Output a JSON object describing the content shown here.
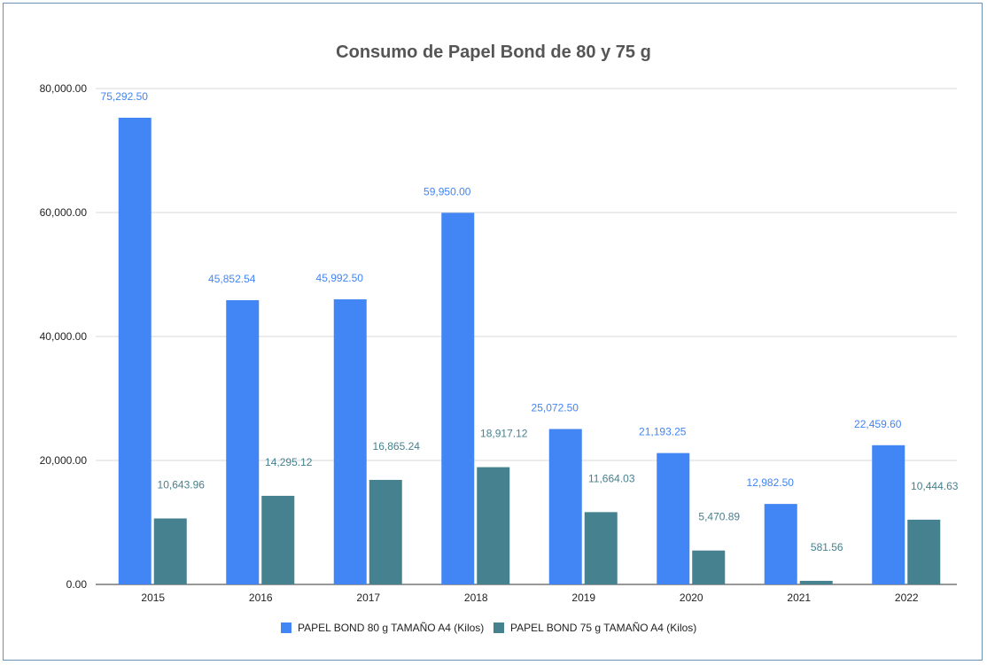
{
  "chart_data": {
    "type": "bar",
    "title": "Consumo de Papel Bond de 80 y 75 g",
    "xlabel": "",
    "ylabel": "",
    "ylim": [
      0,
      80000
    ],
    "yticks": [
      0,
      20000,
      40000,
      60000,
      80000
    ],
    "ytick_labels": [
      "0.00",
      "20,000.00",
      "40,000.00",
      "60,000.00",
      "80,000.00"
    ],
    "categories": [
      "2015",
      "2016",
      "2017",
      "2018",
      "2019",
      "2020",
      "2021",
      "2022"
    ],
    "grid": true,
    "legend_position": "bottom",
    "series": [
      {
        "name": "PAPEL BOND 80 g TAMAÑO A4 (Kilos)",
        "color": "#4285f4",
        "label_color": "#4285f4",
        "values": [
          75292.5,
          45852.54,
          45992.5,
          59950.0,
          25072.5,
          21193.25,
          12982.5,
          22459.6
        ],
        "labels": [
          "75,292.50",
          "45,852.54",
          "45,992.50",
          "59,950.00",
          "25,072.50",
          "21,193.25",
          "12,982.50",
          "22,459.60"
        ]
      },
      {
        "name": "PAPEL BOND 75 g TAMAÑO A4 (Kilos)",
        "color": "#45818e",
        "label_color": "#45818e",
        "values": [
          10643.96,
          14295.12,
          16865.24,
          18917.12,
          11664.03,
          5470.89,
          581.56,
          10444.63
        ],
        "labels": [
          "10,643.96",
          "14,295.12",
          "16,865.24",
          "18,917.12",
          "11,664.03",
          "5,470.89",
          "581.56",
          "10,444.63"
        ]
      }
    ]
  }
}
